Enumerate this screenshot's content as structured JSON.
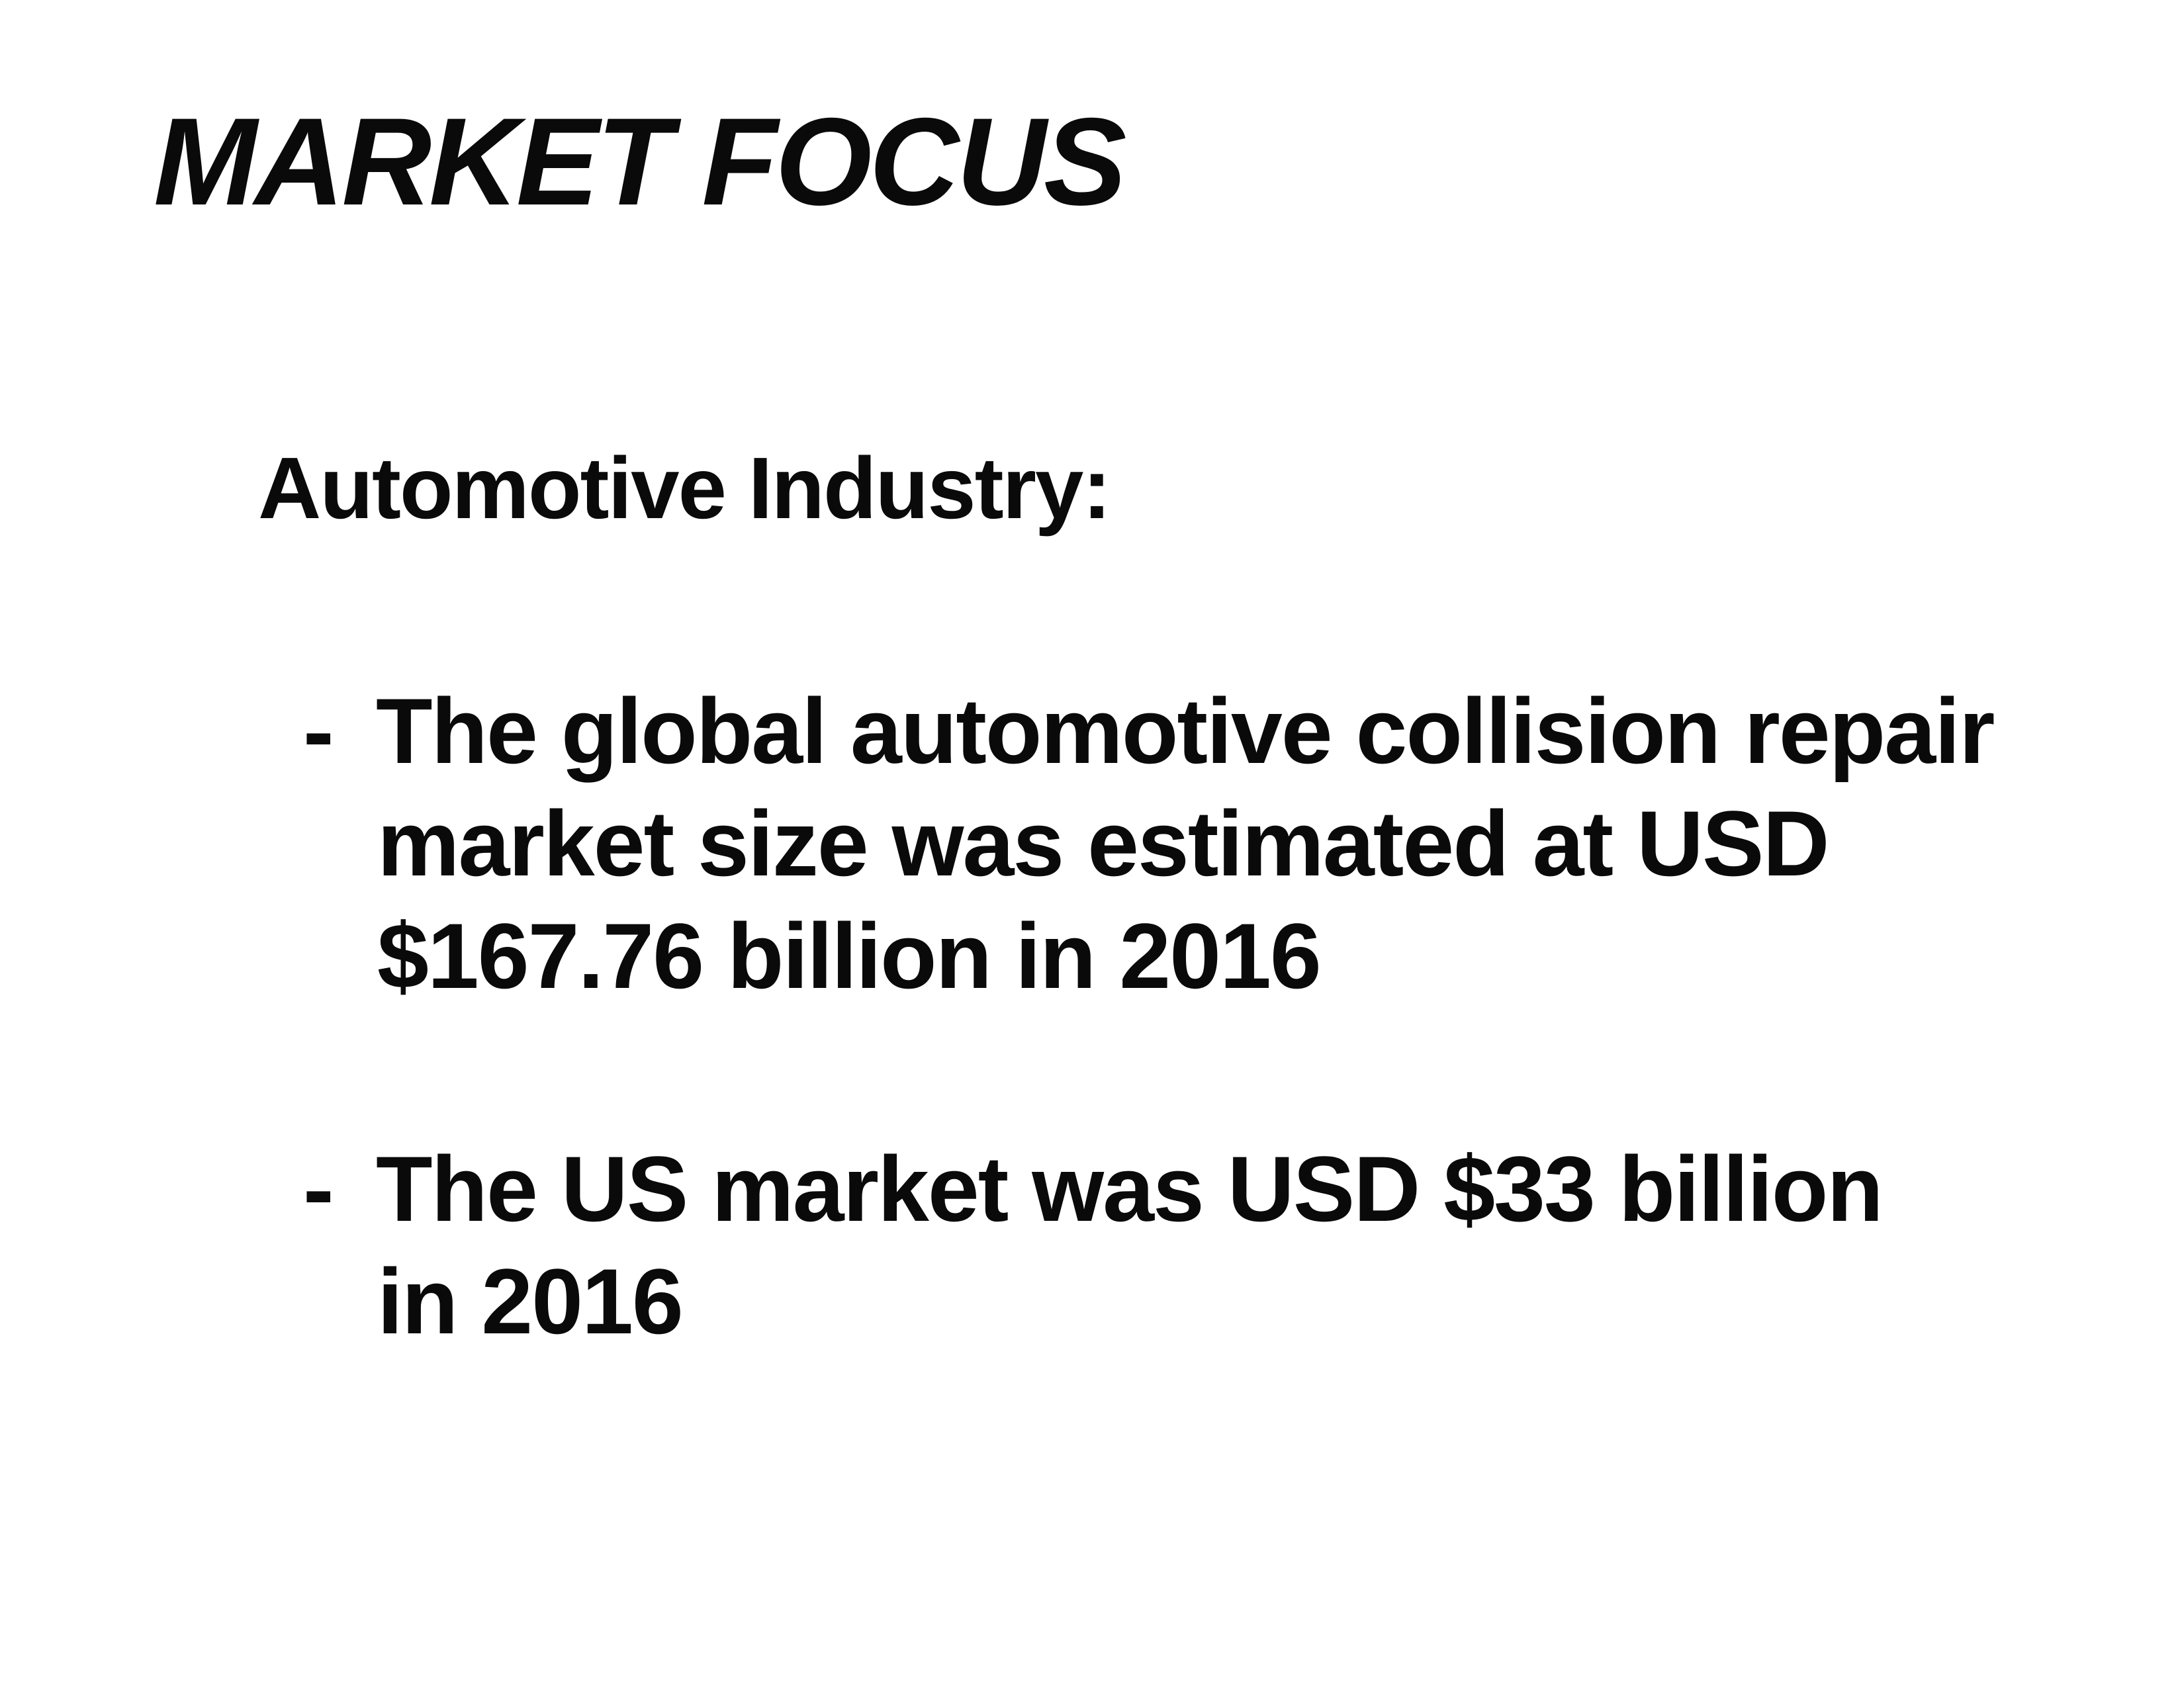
{
  "slide": {
    "title": "MARKET FOCUS",
    "subtitle": "Automotive Industry:",
    "bullets": [
      {
        "dash": "-",
        "lines": [
          "The global automotive collision repair",
          "market size was estimated at USD",
          "$167.76 billion in 2016"
        ]
      },
      {
        "dash": "-",
        "lines": [
          "The US market was USD $33 billion",
          "in 2016"
        ]
      }
    ]
  },
  "colors": {
    "background": "#ffffff",
    "text": "#0a0a0a"
  }
}
